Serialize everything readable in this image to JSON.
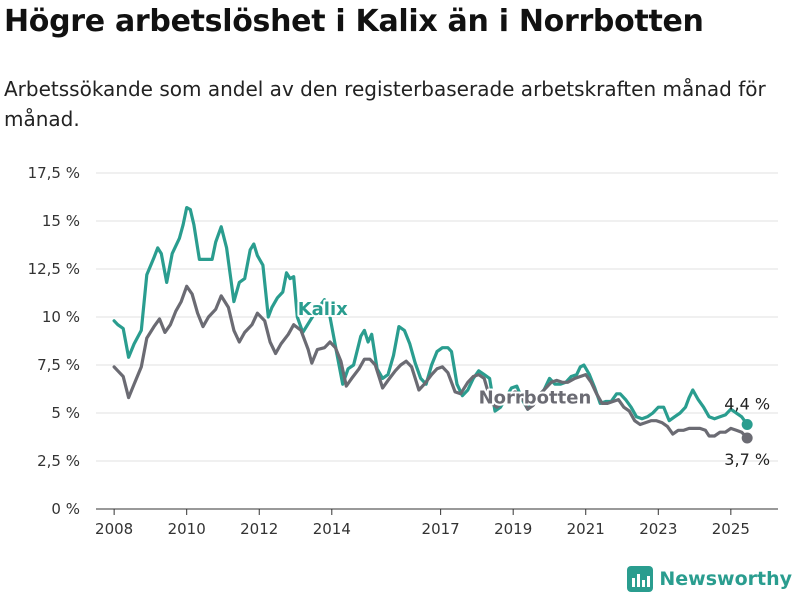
{
  "title": "Högre arbetslöshet i Kalix än i Norrbotten",
  "subtitle": "Arbetssökande som andel av den registerbaserade arbetskraften månad för månad.",
  "brand": {
    "name": "Newsworthy",
    "icon": "bar-chart-icon"
  },
  "chart_data": {
    "type": "line",
    "title": "Högre arbetslöshet i Kalix än i Norrbotten",
    "subtitle": "Arbetssökande som andel av den registerbaserade arbetskraften månad för månad.",
    "xlabel": "",
    "ylabel": "",
    "xlim": [
      2007.5,
      2026.3
    ],
    "ylim": [
      0,
      17.5
    ],
    "grid": true,
    "x_ticks": [
      {
        "value": 2008,
        "label": "2008"
      },
      {
        "value": 2010,
        "label": "2010"
      },
      {
        "value": 2012,
        "label": "2012"
      },
      {
        "value": 2014,
        "label": "2014"
      },
      {
        "value": 2017,
        "label": "2017"
      },
      {
        "value": 2019,
        "label": "2019"
      },
      {
        "value": 2021,
        "label": "2021"
      },
      {
        "value": 2023,
        "label": "2023"
      },
      {
        "value": 2025,
        "label": "2025"
      }
    ],
    "y_ticks": [
      {
        "value": 0,
        "label": "0 %"
      },
      {
        "value": 2.5,
        "label": "2,5 %"
      },
      {
        "value": 5,
        "label": "5 %"
      },
      {
        "value": 7.5,
        "label": "7,5 %"
      },
      {
        "value": 10,
        "label": "10 %"
      },
      {
        "value": 12.5,
        "label": "12,5 %"
      },
      {
        "value": 15,
        "label": "15 %"
      },
      {
        "value": 17.5,
        "label": "17,5 %"
      }
    ],
    "series": [
      {
        "name": "Kalix",
        "color": "#2a9d8f",
        "end_label": "4,4 %",
        "points": [
          [
            2008.0,
            9.8
          ],
          [
            2008.1,
            9.6
          ],
          [
            2008.25,
            9.4
          ],
          [
            2008.4,
            7.9
          ],
          [
            2008.55,
            8.6
          ],
          [
            2008.75,
            9.3
          ],
          [
            2008.9,
            12.2
          ],
          [
            2009.1,
            13.1
          ],
          [
            2009.2,
            13.6
          ],
          [
            2009.3,
            13.3
          ],
          [
            2009.45,
            11.8
          ],
          [
            2009.6,
            13.3
          ],
          [
            2009.8,
            14.1
          ],
          [
            2009.9,
            14.8
          ],
          [
            2010.0,
            15.7
          ],
          [
            2010.1,
            15.6
          ],
          [
            2010.2,
            14.8
          ],
          [
            2010.35,
            13.0
          ],
          [
            2010.5,
            13.0
          ],
          [
            2010.7,
            13.0
          ],
          [
            2010.8,
            13.9
          ],
          [
            2010.95,
            14.7
          ],
          [
            2011.1,
            13.6
          ],
          [
            2011.3,
            10.8
          ],
          [
            2011.45,
            11.8
          ],
          [
            2011.6,
            12.0
          ],
          [
            2011.75,
            13.5
          ],
          [
            2011.85,
            13.8
          ],
          [
            2011.95,
            13.2
          ],
          [
            2012.1,
            12.7
          ],
          [
            2012.25,
            10.0
          ],
          [
            2012.35,
            10.5
          ],
          [
            2012.5,
            11.0
          ],
          [
            2012.65,
            11.3
          ],
          [
            2012.75,
            12.3
          ],
          [
            2012.85,
            12.0
          ],
          [
            2012.95,
            12.1
          ],
          [
            2013.05,
            10.0
          ],
          [
            2013.2,
            9.2
          ],
          [
            2013.4,
            9.8
          ],
          [
            2013.6,
            10.4
          ],
          [
            2013.8,
            10.9
          ],
          [
            2013.95,
            10.0
          ],
          [
            2014.15,
            8.0
          ],
          [
            2014.3,
            6.5
          ],
          [
            2014.45,
            7.3
          ],
          [
            2014.6,
            7.5
          ],
          [
            2014.8,
            9.0
          ],
          [
            2014.9,
            9.3
          ],
          [
            2015.0,
            8.7
          ],
          [
            2015.1,
            9.1
          ],
          [
            2015.25,
            7.3
          ],
          [
            2015.4,
            6.8
          ],
          [
            2015.55,
            7.0
          ],
          [
            2015.7,
            8.0
          ],
          [
            2015.85,
            9.5
          ],
          [
            2016.0,
            9.3
          ],
          [
            2016.15,
            8.6
          ],
          [
            2016.3,
            7.6
          ],
          [
            2016.45,
            6.8
          ],
          [
            2016.6,
            6.5
          ],
          [
            2016.75,
            7.5
          ],
          [
            2016.9,
            8.2
          ],
          [
            2017.05,
            8.4
          ],
          [
            2017.2,
            8.4
          ],
          [
            2017.3,
            8.2
          ],
          [
            2017.45,
            6.5
          ],
          [
            2017.6,
            5.9
          ],
          [
            2017.75,
            6.2
          ],
          [
            2017.9,
            6.8
          ],
          [
            2018.05,
            7.2
          ],
          [
            2018.2,
            7.0
          ],
          [
            2018.35,
            6.8
          ],
          [
            2018.5,
            5.1
          ],
          [
            2018.65,
            5.3
          ],
          [
            2018.8,
            5.8
          ],
          [
            2018.95,
            6.3
          ],
          [
            2019.1,
            6.4
          ],
          [
            2019.25,
            5.7
          ],
          [
            2019.4,
            5.2
          ],
          [
            2019.55,
            5.6
          ],
          [
            2019.7,
            5.9
          ],
          [
            2019.85,
            6.2
          ],
          [
            2020.0,
            6.8
          ],
          [
            2020.15,
            6.5
          ],
          [
            2020.3,
            6.5
          ],
          [
            2020.45,
            6.6
          ],
          [
            2020.6,
            6.9
          ],
          [
            2020.75,
            7.0
          ],
          [
            2020.85,
            7.4
          ],
          [
            2020.95,
            7.5
          ],
          [
            2021.1,
            7.0
          ],
          [
            2021.25,
            6.3
          ],
          [
            2021.4,
            5.5
          ],
          [
            2021.55,
            5.6
          ],
          [
            2021.7,
            5.6
          ],
          [
            2021.85,
            6.0
          ],
          [
            2021.95,
            6.0
          ],
          [
            2022.1,
            5.7
          ],
          [
            2022.25,
            5.3
          ],
          [
            2022.4,
            4.8
          ],
          [
            2022.55,
            4.7
          ],
          [
            2022.7,
            4.8
          ],
          [
            2022.85,
            5.0
          ],
          [
            2023.0,
            5.3
          ],
          [
            2023.15,
            5.3
          ],
          [
            2023.3,
            4.6
          ],
          [
            2023.45,
            4.8
          ],
          [
            2023.6,
            5.0
          ],
          [
            2023.75,
            5.3
          ],
          [
            2023.85,
            5.8
          ],
          [
            2023.95,
            6.2
          ],
          [
            2024.1,
            5.7
          ],
          [
            2024.25,
            5.3
          ],
          [
            2024.4,
            4.8
          ],
          [
            2024.55,
            4.7
          ],
          [
            2024.7,
            4.8
          ],
          [
            2024.85,
            4.9
          ],
          [
            2025.0,
            5.2
          ],
          [
            2025.15,
            5.0
          ],
          [
            2025.3,
            4.8
          ],
          [
            2025.45,
            4.4
          ]
        ]
      },
      {
        "name": "Norrbotten",
        "color": "#6b6b73",
        "end_label": "3,7 %",
        "points": [
          [
            2008.0,
            7.4
          ],
          [
            2008.1,
            7.2
          ],
          [
            2008.25,
            6.9
          ],
          [
            2008.4,
            5.8
          ],
          [
            2008.55,
            6.5
          ],
          [
            2008.75,
            7.4
          ],
          [
            2008.9,
            8.9
          ],
          [
            2009.1,
            9.5
          ],
          [
            2009.25,
            9.9
          ],
          [
            2009.4,
            9.2
          ],
          [
            2009.55,
            9.6
          ],
          [
            2009.7,
            10.3
          ],
          [
            2009.85,
            10.8
          ],
          [
            2010.0,
            11.6
          ],
          [
            2010.15,
            11.2
          ],
          [
            2010.3,
            10.2
          ],
          [
            2010.45,
            9.5
          ],
          [
            2010.6,
            10.0
          ],
          [
            2010.8,
            10.4
          ],
          [
            2010.95,
            11.1
          ],
          [
            2011.15,
            10.5
          ],
          [
            2011.3,
            9.3
          ],
          [
            2011.45,
            8.7
          ],
          [
            2011.6,
            9.2
          ],
          [
            2011.8,
            9.6
          ],
          [
            2011.95,
            10.2
          ],
          [
            2012.15,
            9.8
          ],
          [
            2012.3,
            8.7
          ],
          [
            2012.45,
            8.1
          ],
          [
            2012.6,
            8.6
          ],
          [
            2012.8,
            9.1
          ],
          [
            2012.95,
            9.6
          ],
          [
            2013.15,
            9.3
          ],
          [
            2013.35,
            8.3
          ],
          [
            2013.45,
            7.6
          ],
          [
            2013.6,
            8.3
          ],
          [
            2013.8,
            8.4
          ],
          [
            2013.95,
            8.7
          ],
          [
            2014.1,
            8.4
          ],
          [
            2014.25,
            7.7
          ],
          [
            2014.4,
            6.4
          ],
          [
            2014.55,
            6.8
          ],
          [
            2014.75,
            7.3
          ],
          [
            2014.9,
            7.8
          ],
          [
            2015.05,
            7.8
          ],
          [
            2015.2,
            7.5
          ],
          [
            2015.4,
            6.3
          ],
          [
            2015.55,
            6.7
          ],
          [
            2015.75,
            7.2
          ],
          [
            2015.9,
            7.5
          ],
          [
            2016.05,
            7.7
          ],
          [
            2016.2,
            7.4
          ],
          [
            2016.4,
            6.2
          ],
          [
            2016.55,
            6.5
          ],
          [
            2016.75,
            7.0
          ],
          [
            2016.9,
            7.3
          ],
          [
            2017.05,
            7.4
          ],
          [
            2017.2,
            7.1
          ],
          [
            2017.4,
            6.1
          ],
          [
            2017.55,
            6.0
          ],
          [
            2017.75,
            6.6
          ],
          [
            2017.9,
            6.9
          ],
          [
            2018.05,
            7.0
          ],
          [
            2018.2,
            6.8
          ],
          [
            2018.4,
            5.5
          ],
          [
            2018.55,
            5.3
          ],
          [
            2018.75,
            5.6
          ],
          [
            2018.9,
            5.9
          ],
          [
            2019.05,
            6.1
          ],
          [
            2019.2,
            6.0
          ],
          [
            2019.4,
            5.2
          ],
          [
            2019.55,
            5.4
          ],
          [
            2019.75,
            6.0
          ],
          [
            2019.9,
            6.3
          ],
          [
            2020.05,
            6.6
          ],
          [
            2020.2,
            6.7
          ],
          [
            2020.35,
            6.6
          ],
          [
            2020.5,
            6.6
          ],
          [
            2020.7,
            6.8
          ],
          [
            2020.85,
            6.9
          ],
          [
            2021.0,
            7.0
          ],
          [
            2021.15,
            6.6
          ],
          [
            2021.3,
            6.0
          ],
          [
            2021.45,
            5.5
          ],
          [
            2021.6,
            5.5
          ],
          [
            2021.75,
            5.6
          ],
          [
            2021.9,
            5.7
          ],
          [
            2022.05,
            5.3
          ],
          [
            2022.2,
            5.1
          ],
          [
            2022.35,
            4.6
          ],
          [
            2022.5,
            4.4
          ],
          [
            2022.65,
            4.5
          ],
          [
            2022.8,
            4.6
          ],
          [
            2022.95,
            4.6
          ],
          [
            2023.1,
            4.5
          ],
          [
            2023.25,
            4.3
          ],
          [
            2023.4,
            3.9
          ],
          [
            2023.55,
            4.1
          ],
          [
            2023.7,
            4.1
          ],
          [
            2023.85,
            4.2
          ],
          [
            2024.0,
            4.2
          ],
          [
            2024.15,
            4.2
          ],
          [
            2024.3,
            4.1
          ],
          [
            2024.4,
            3.8
          ],
          [
            2024.55,
            3.8
          ],
          [
            2024.7,
            4.0
          ],
          [
            2024.85,
            4.0
          ],
          [
            2025.0,
            4.2
          ],
          [
            2025.15,
            4.1
          ],
          [
            2025.3,
            4.0
          ],
          [
            2025.45,
            3.7
          ]
        ]
      }
    ],
    "annotations": [
      {
        "series": "Kalix",
        "text": "Kalix",
        "x": 2013.75,
        "y": 10.1
      },
      {
        "series": "Norrbotten",
        "text": "Norrbotten",
        "x": 2019.6,
        "y": 5.5
      }
    ]
  }
}
